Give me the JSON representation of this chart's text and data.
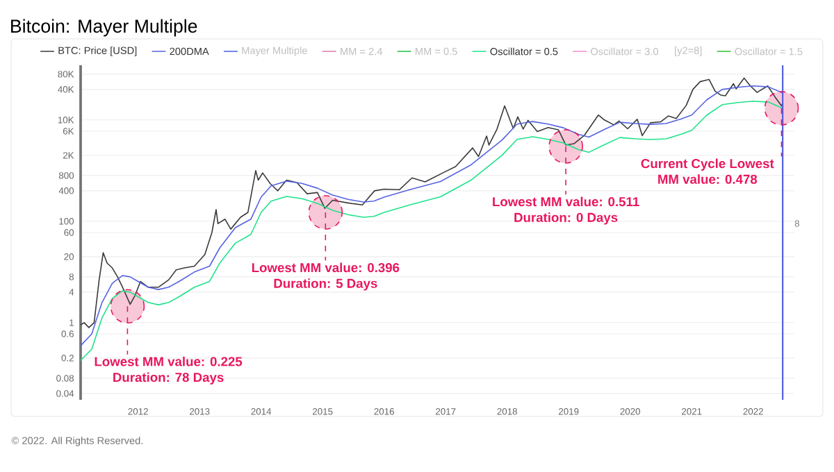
{
  "chart_data": {
    "type": "line",
    "title": "Bitcoin: Mayer Multiple",
    "log": "y",
    "grid": "y",
    "legend": "top",
    "xlim": [
      "2011-01-25",
      "2022-09-01"
    ],
    "xticks": [
      "2012",
      "2013",
      "2014",
      "2015",
      "2016",
      "2017",
      "2018",
      "2019",
      "2020",
      "2021",
      "2022"
    ],
    "ylim": [
      0.03,
      120000
    ],
    "yticks": [
      0.04,
      0.08,
      0.2,
      0.6,
      1,
      4,
      8,
      20,
      60,
      100,
      400,
      800,
      {
        "value": 2000,
        "label": "2K"
      },
      {
        "value": 6000,
        "label": "6K"
      },
      {
        "value": 10000,
        "label": "10K"
      },
      {
        "value": 40000,
        "label": "40K"
      },
      {
        "value": 80000,
        "label": "80K"
      }
    ],
    "series": [
      {
        "name": "BTC: Price [USD]",
        "color": "#3a3a3a",
        "x": [
          "2011-01-25",
          "2011-02-15",
          "2011-03-15",
          "2011-04-15",
          "2011-05-15",
          "2011-06-08",
          "2011-07-01",
          "2011-08-01",
          "2011-09-01",
          "2011-10-01",
          "2011-11-15",
          "2011-12-15",
          "2012-01-15",
          "2012-03-01",
          "2012-05-01",
          "2012-07-01",
          "2012-08-15",
          "2012-10-01",
          "2012-12-01",
          "2013-02-01",
          "2013-03-15",
          "2013-04-09",
          "2013-04-20",
          "2013-06-01",
          "2013-07-05",
          "2013-09-01",
          "2013-10-15",
          "2013-11-30",
          "2013-12-15",
          "2014-01-10",
          "2014-02-25",
          "2014-04-10",
          "2014-06-01",
          "2014-08-01",
          "2014-10-01",
          "2014-12-01",
          "2015-01-14",
          "2015-03-01",
          "2015-06-01",
          "2015-08-25",
          "2015-11-05",
          "2016-01-01",
          "2016-04-01",
          "2016-06-15",
          "2016-09-01",
          "2016-12-31",
          "2017-03-01",
          "2017-06-10",
          "2017-07-15",
          "2017-09-01",
          "2017-09-15",
          "2017-11-01",
          "2017-12-17",
          "2018-02-06",
          "2018-03-05",
          "2018-04-06",
          "2018-05-05",
          "2018-06-29",
          "2018-09-01",
          "2018-11-01",
          "2018-12-15",
          "2019-02-01",
          "2019-04-05",
          "2019-06-26",
          "2019-08-01",
          "2019-09-26",
          "2019-10-27",
          "2019-12-17",
          "2020-02-12",
          "2020-03-13",
          "2020-05-01",
          "2020-07-01",
          "2020-08-15",
          "2020-10-01",
          "2020-11-30",
          "2021-01-08",
          "2021-02-20",
          "2021-04-14",
          "2021-05-20",
          "2021-06-22",
          "2021-07-20",
          "2021-09-06",
          "2021-09-22",
          "2021-11-08",
          "2021-12-15",
          "2022-01-24",
          "2022-03-28",
          "2022-05-12",
          "2022-06-18",
          "2022-06-25"
        ],
        "values": [
          0.9,
          1.0,
          0.8,
          1.0,
          7,
          24,
          15,
          12,
          8,
          5,
          2.3,
          3.5,
          6.5,
          5,
          5,
          7,
          11,
          12,
          13,
          22,
          60,
          170,
          90,
          110,
          70,
          120,
          150,
          1000,
          650,
          900,
          550,
          400,
          650,
          580,
          350,
          370,
          180,
          260,
          230,
          210,
          400,
          430,
          420,
          720,
          600,
          960,
          1200,
          2800,
          1900,
          4800,
          3200,
          6500,
          19000,
          6800,
          11500,
          6600,
          9800,
          5900,
          7100,
          6400,
          3200,
          3400,
          5000,
          12500,
          10000,
          8000,
          9500,
          6700,
          10300,
          4900,
          8800,
          9200,
          12000,
          10700,
          19500,
          40000,
          57000,
          63000,
          37000,
          31000,
          30000,
          52000,
          41000,
          67000,
          47000,
          35000,
          47000,
          28000,
          19000,
          21000
        ]
      },
      {
        "name": "200DMA",
        "color": "#5563e0",
        "x": [
          "2011-01-25",
          "2011-04-01",
          "2011-06-01",
          "2011-08-01",
          "2011-10-01",
          "2011-11-15",
          "2012-01-01",
          "2012-03-01",
          "2012-05-01",
          "2012-07-01",
          "2012-09-01",
          "2012-12-01",
          "2013-03-01",
          "2013-05-01",
          "2013-08-01",
          "2013-11-01",
          "2014-01-01",
          "2014-03-01",
          "2014-06-01",
          "2014-09-01",
          "2014-12-01",
          "2015-03-01",
          "2015-06-01",
          "2015-09-01",
          "2015-11-01",
          "2016-01-01",
          "2016-06-01",
          "2016-12-01",
          "2017-06-01",
          "2017-12-01",
          "2018-03-01",
          "2018-06-01",
          "2018-09-01",
          "2018-12-01",
          "2019-03-01",
          "2019-05-01",
          "2019-08-01",
          "2019-11-01",
          "2020-02-01",
          "2020-05-01",
          "2020-08-01",
          "2020-11-01",
          "2021-01-01",
          "2021-04-01",
          "2021-07-01",
          "2021-10-01",
          "2022-01-01",
          "2022-04-01",
          "2022-06-25"
        ],
        "values": [
          0.35,
          0.6,
          2.5,
          6,
          8.5,
          8,
          6.5,
          5,
          4.5,
          5,
          6.5,
          10,
          13,
          30,
          75,
          110,
          300,
          500,
          620,
          560,
          450,
          330,
          270,
          240,
          250,
          300,
          420,
          610,
          1300,
          4000,
          8300,
          9300,
          8300,
          7000,
          5200,
          4600,
          6500,
          9000,
          8500,
          8200,
          8500,
          10500,
          12500,
          25000,
          40000,
          44000,
          47000,
          45000,
          34000
        ]
      },
      {
        "name": "Mayer Multiple",
        "color": "#4a5ae0"
      },
      {
        "name": "MM = 2.4",
        "color": "#e07ab0"
      },
      {
        "name": "MM = 0.5",
        "color": "#20c040"
      },
      {
        "name": "Oscillator = 0.5",
        "color": "#1de38a",
        "x": [
          "2011-01-25",
          "2011-04-01",
          "2011-06-01",
          "2011-08-01",
          "2011-10-01",
          "2011-11-15",
          "2012-01-01",
          "2012-03-01",
          "2012-05-01",
          "2012-07-01",
          "2012-09-01",
          "2012-12-01",
          "2013-03-01",
          "2013-05-01",
          "2013-08-01",
          "2013-11-01",
          "2014-01-01",
          "2014-03-01",
          "2014-06-01",
          "2014-09-01",
          "2014-12-01",
          "2015-03-01",
          "2015-06-01",
          "2015-09-01",
          "2015-11-01",
          "2016-01-01",
          "2016-06-01",
          "2016-12-01",
          "2017-06-01",
          "2017-12-01",
          "2018-03-01",
          "2018-06-01",
          "2018-09-01",
          "2018-12-01",
          "2019-03-01",
          "2019-05-01",
          "2019-08-01",
          "2019-11-01",
          "2020-02-01",
          "2020-05-01",
          "2020-08-01",
          "2020-11-01",
          "2021-01-01",
          "2021-04-01",
          "2021-07-01",
          "2021-10-01",
          "2022-01-01",
          "2022-04-01",
          "2022-06-25"
        ],
        "values": [
          0.18,
          0.3,
          1.25,
          3,
          4.25,
          4,
          3.25,
          2.5,
          2.25,
          2.5,
          3.25,
          5,
          6.5,
          15,
          37,
          55,
          150,
          250,
          310,
          280,
          225,
          165,
          135,
          120,
          125,
          150,
          210,
          305,
          650,
          2000,
          4150,
          4650,
          4150,
          3500,
          2600,
          2300,
          3250,
          4500,
          4250,
          4100,
          4250,
          5250,
          6250,
          12500,
          20000,
          22000,
          23500,
          22500,
          17000
        ]
      },
      {
        "name": "Oscillator = 3.0",
        "color": "#f08ad0"
      },
      {
        "name": "[y2=8]"
      },
      {
        "name": "Oscillator = 1.5",
        "color": "#30c030"
      }
    ],
    "ref_lines": [
      {
        "axis": "x",
        "value": "2022-06-25",
        "color": "#4a5ae0"
      }
    ],
    "annotations": [
      {
        "text": "Lowest MM value: 0.225",
        "x": "2011-10-30",
        "y": 2.1
      },
      "Duration: 78 Days",
      {
        "text": "Lowest MM value: 0.396",
        "x": "2015-01-18",
        "y": 150
      },
      "Duration: 5 Days",
      {
        "text": "Lowest MM value: 0.511",
        "x": "2018-12-15",
        "y": 3000
      },
      "Duration: 0 Days",
      {
        "text": "Current Cycle Lowest",
        "x": "2022-06-18",
        "y": 17000
      },
      "MM value: 0.478",
      "8",
      "© 2022. All Rights Reserved."
    ]
  }
}
